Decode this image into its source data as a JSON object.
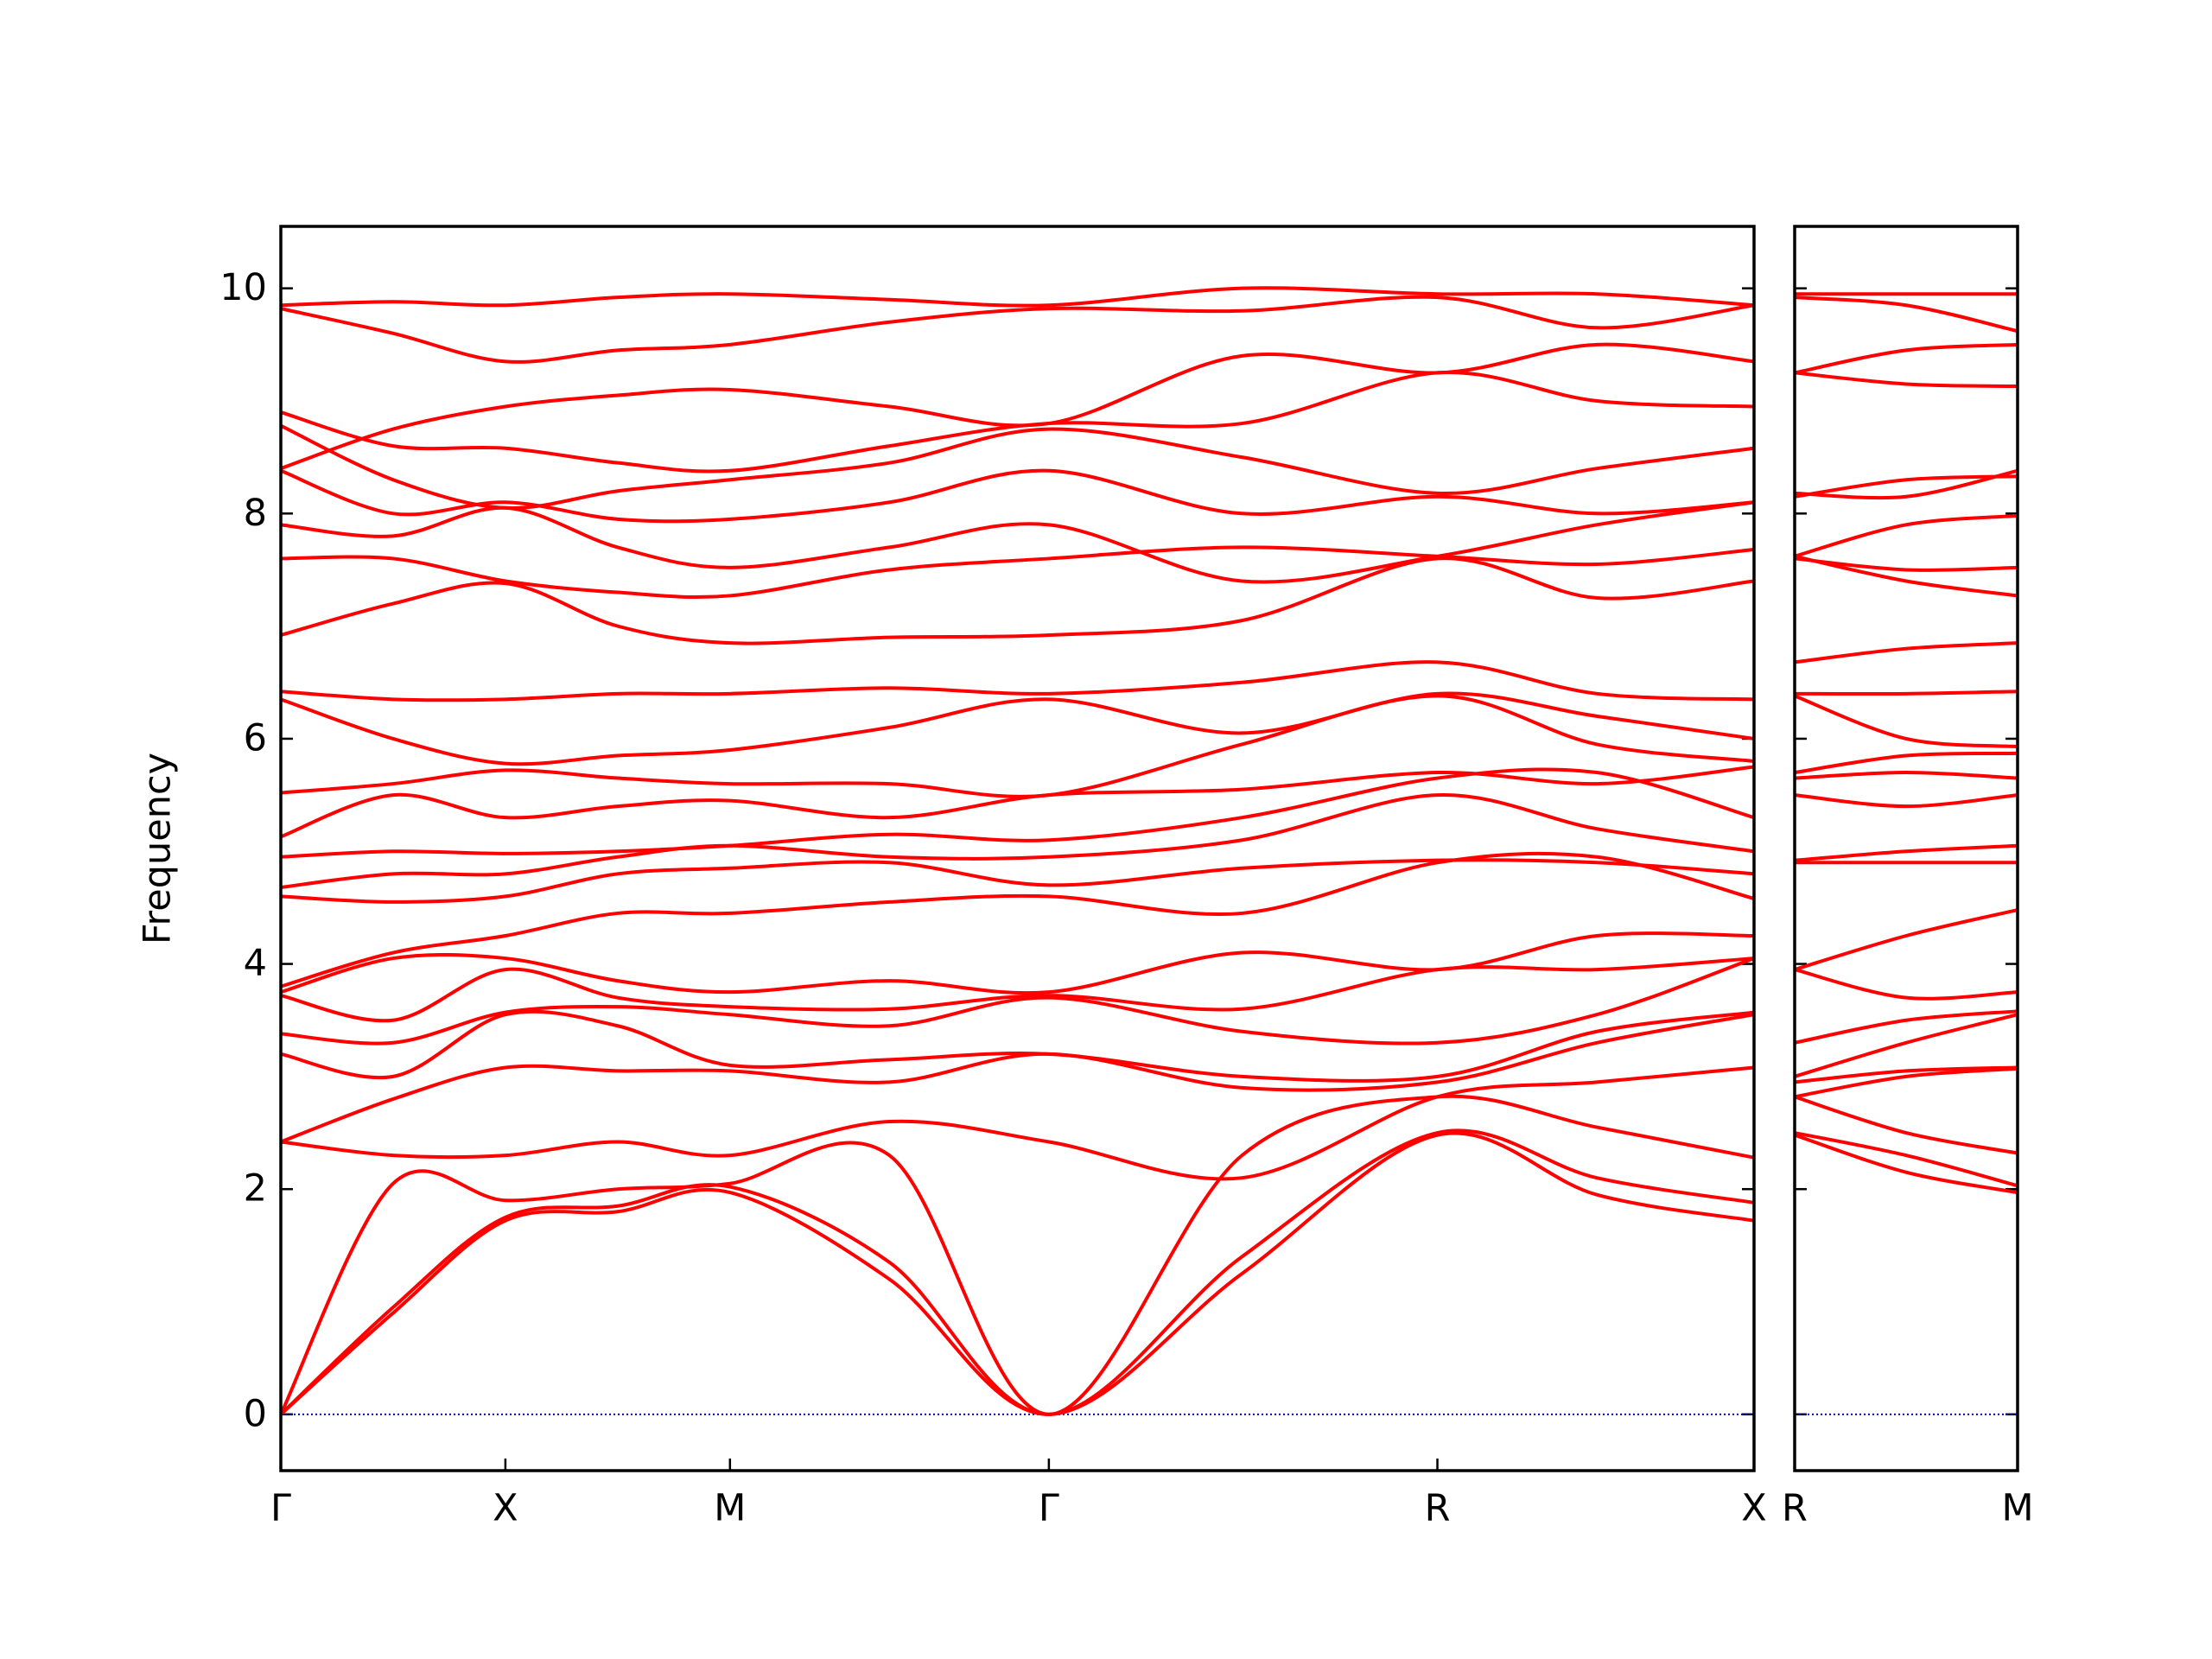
{
  "chart_data": [
    {
      "type": "line",
      "y_label": "Frequency",
      "color": "#ff0000",
      "x": [
        0,
        0.5,
        1,
        1.5,
        2,
        2.71,
        3.42,
        4.28,
        5.15,
        5.86,
        6.56
      ],
      "xlim": [
        0,
        6.56
      ],
      "xticks": [
        {
          "value": 0,
          "label": "Γ"
        },
        {
          "value": 1,
          "label": "X"
        },
        {
          "value": 2,
          "label": "M"
        },
        {
          "value": 3.42,
          "label": "Γ"
        },
        {
          "value": 5.15,
          "label": "R"
        },
        {
          "value": 6.56,
          "label": "X"
        }
      ],
      "ylim": [
        -0.5,
        10.55
      ],
      "yticks": [
        0,
        2,
        4,
        6,
        8,
        10
      ],
      "hline": {
        "y": 0,
        "color": "#0000cc"
      },
      "series": [
        {
          "values": [
            0,
            0.9,
            1.72,
            1.8,
            1.97,
            1.2,
            0,
            1.25,
            2.48,
            1.95,
            1.72
          ]
        },
        {
          "values": [
            0,
            0.95,
            1.75,
            1.85,
            2.02,
            1.35,
            0,
            1.4,
            2.5,
            2.1,
            1.88
          ]
        },
        {
          "values": [
            0,
            2.05,
            1.9,
            2.0,
            2.05,
            2.3,
            0,
            2.3,
            2.82,
            2.55,
            2.28
          ]
        },
        {
          "values": [
            2.42,
            2.3,
            2.3,
            2.42,
            2.3,
            2.6,
            2.42,
            2.1,
            2.82,
            2.95,
            3.08
          ]
        },
        {
          "values": [
            2.42,
            2.8,
            3.08,
            3.05,
            3.05,
            2.95,
            3.2,
            2.9,
            2.95,
            3.3,
            3.55
          ]
        },
        {
          "values": [
            3.2,
            3.0,
            3.55,
            3.45,
            3.1,
            3.15,
            3.2,
            3.0,
            3.0,
            3.4,
            3.57
          ]
        },
        {
          "values": [
            3.38,
            3.3,
            3.57,
            3.62,
            3.55,
            3.45,
            3.7,
            3.4,
            3.3,
            3.55,
            4.05
          ]
        },
        {
          "values": [
            3.72,
            3.5,
            3.95,
            3.7,
            3.62,
            3.6,
            3.72,
            3.6,
            3.95,
            3.95,
            4.05
          ]
        },
        {
          "values": [
            3.75,
            4.05,
            4.05,
            3.85,
            3.75,
            3.85,
            3.75,
            4.1,
            3.95,
            4.25,
            4.25
          ]
        },
        {
          "values": [
            3.8,
            4.1,
            4.25,
            4.45,
            4.45,
            4.55,
            4.6,
            4.45,
            4.9,
            4.95,
            4.58
          ]
        },
        {
          "values": [
            4.6,
            4.55,
            4.6,
            4.8,
            4.85,
            4.9,
            4.7,
            4.85,
            4.92,
            4.9,
            4.8
          ]
        },
        {
          "values": [
            4.68,
            4.8,
            4.8,
            4.95,
            5.05,
            4.95,
            4.95,
            5.1,
            5.5,
            5.2,
            5.0
          ]
        },
        {
          "values": [
            4.95,
            5.0,
            4.98,
            5.0,
            5.05,
            5.15,
            5.1,
            5.3,
            5.65,
            5.7,
            5.3
          ]
        },
        {
          "values": [
            5.13,
            5.5,
            5.3,
            5.4,
            5.45,
            5.3,
            5.5,
            5.55,
            5.7,
            5.6,
            5.75
          ]
        },
        {
          "values": [
            5.52,
            5.6,
            5.72,
            5.65,
            5.6,
            5.6,
            5.5,
            5.95,
            6.38,
            5.95,
            5.8
          ]
        },
        {
          "values": [
            6.35,
            6.0,
            5.78,
            5.85,
            5.9,
            6.1,
            6.35,
            6.05,
            6.4,
            6.2,
            6.0
          ]
        },
        {
          "values": [
            6.42,
            6.35,
            6.35,
            6.4,
            6.4,
            6.45,
            6.4,
            6.5,
            6.68,
            6.4,
            6.35
          ]
        },
        {
          "values": [
            6.92,
            7.2,
            7.38,
            7.0,
            6.85,
            6.9,
            6.92,
            7.05,
            7.6,
            7.25,
            7.4
          ]
        },
        {
          "values": [
            7.6,
            7.6,
            7.4,
            7.3,
            7.27,
            7.5,
            7.6,
            7.7,
            7.62,
            7.55,
            7.68
          ]
        },
        {
          "values": [
            7.9,
            7.8,
            8.05,
            7.7,
            7.52,
            7.7,
            7.9,
            7.4,
            7.62,
            7.9,
            8.1
          ]
        },
        {
          "values": [
            8.38,
            8.0,
            8.1,
            7.95,
            7.95,
            8.1,
            8.38,
            8.0,
            8.15,
            8.0,
            8.1
          ]
        },
        {
          "values": [
            8.78,
            8.3,
            8.05,
            8.2,
            8.3,
            8.45,
            8.75,
            8.5,
            8.18,
            8.4,
            8.58
          ]
        },
        {
          "values": [
            8.9,
            8.6,
            8.58,
            8.45,
            8.38,
            8.6,
            8.8,
            8.8,
            9.25,
            9.0,
            8.95
          ]
        },
        {
          "values": [
            8.4,
            8.75,
            8.95,
            9.05,
            9.1,
            8.95,
            8.8,
            9.4,
            9.25,
            9.5,
            9.35
          ]
        },
        {
          "values": [
            9.82,
            9.6,
            9.35,
            9.45,
            9.5,
            9.7,
            9.82,
            9.8,
            9.92,
            9.65,
            9.85
          ]
        },
        {
          "values": [
            9.85,
            9.88,
            9.85,
            9.92,
            9.95,
            9.9,
            9.85,
            10.0,
            9.95,
            9.95,
            9.85
          ]
        }
      ]
    },
    {
      "type": "line",
      "color": "#ff0000",
      "x": [
        0,
        0.5,
        1
      ],
      "xlim": [
        0,
        1
      ],
      "xticks": [
        {
          "value": 0,
          "label": "R"
        },
        {
          "value": 1,
          "label": "M"
        }
      ],
      "ylim": [
        -0.5,
        10.55
      ],
      "hline": {
        "y": 0,
        "color": "#0000cc"
      },
      "series": [
        {
          "values": [
            2.48,
            2.15,
            1.97
          ]
        },
        {
          "values": [
            2.5,
            2.3,
            2.03
          ]
        },
        {
          "values": [
            2.82,
            2.5,
            2.32
          ]
        },
        {
          "values": [
            2.82,
            3.0,
            3.07
          ]
        },
        {
          "values": [
            2.95,
            3.05,
            3.08
          ]
        },
        {
          "values": [
            3.0,
            3.3,
            3.55
          ]
        },
        {
          "values": [
            3.3,
            3.5,
            3.58
          ]
        },
        {
          "values": [
            3.95,
            3.7,
            3.75
          ]
        },
        {
          "values": [
            3.95,
            4.25,
            4.48
          ]
        },
        {
          "values": [
            4.9,
            4.9,
            4.9
          ]
        },
        {
          "values": [
            4.92,
            5.0,
            5.05
          ]
        },
        {
          "values": [
            5.5,
            5.4,
            5.5
          ]
        },
        {
          "values": [
            5.65,
            5.7,
            5.65
          ]
        },
        {
          "values": [
            5.7,
            5.85,
            5.87
          ]
        },
        {
          "values": [
            6.38,
            6.0,
            5.93
          ]
        },
        {
          "values": [
            6.4,
            6.4,
            6.42
          ]
        },
        {
          "values": [
            6.68,
            6.8,
            6.85
          ]
        },
        {
          "values": [
            7.6,
            7.5,
            7.52
          ]
        },
        {
          "values": [
            7.62,
            7.4,
            7.27
          ]
        },
        {
          "values": [
            7.62,
            7.9,
            7.98
          ]
        },
        {
          "values": [
            8.15,
            8.3,
            8.33
          ]
        },
        {
          "values": [
            8.18,
            8.15,
            8.38
          ]
        },
        {
          "values": [
            9.25,
            9.15,
            9.13
          ]
        },
        {
          "values": [
            9.25,
            9.45,
            9.5
          ]
        },
        {
          "values": [
            9.92,
            9.85,
            9.62
          ]
        },
        {
          "values": [
            9.95,
            9.95,
            9.95
          ]
        }
      ]
    }
  ]
}
